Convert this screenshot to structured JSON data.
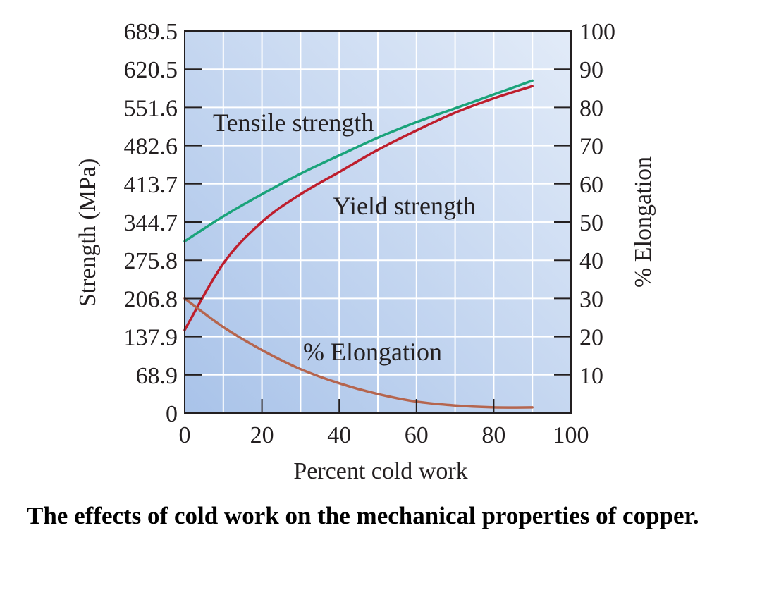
{
  "caption": "The effects of cold work on the mechanical properties of copper.",
  "chart_data": {
    "type": "line",
    "title": "",
    "xlabel": "Percent cold work",
    "ylabel": "Strength (MPa)",
    "y2label": "% Elongation",
    "xlim": [
      0,
      100
    ],
    "ylim": [
      0,
      689.5
    ],
    "y2lim": [
      0,
      100
    ],
    "xticks": [
      0,
      20,
      40,
      60,
      80,
      100
    ],
    "xtick_labels": [
      "0",
      "20",
      "40",
      "60",
      "80",
      "100"
    ],
    "yticks": [
      0,
      68.9,
      137.9,
      206.8,
      275.8,
      344.7,
      413.7,
      482.6,
      551.6,
      620.5,
      689.5
    ],
    "ytick_labels": [
      "0",
      "68.9",
      "137.9",
      "206.8",
      "275.8",
      "344.7",
      "413.7",
      "482.6",
      "551.6",
      "620.5",
      "689.5"
    ],
    "y2ticks": [
      10,
      20,
      30,
      40,
      50,
      60,
      70,
      80,
      90,
      100
    ],
    "y2tick_labels": [
      "10",
      "20",
      "30",
      "40",
      "50",
      "60",
      "70",
      "80",
      "90",
      "100"
    ],
    "grid": true,
    "background_colors": [
      "#a9c3e9",
      "#e2ebf8"
    ],
    "colors": {
      "tensile": "#1aa37a",
      "yield": "#be1e2d",
      "elongation": "#b5654e",
      "grid": "#ffffff",
      "frame": "#231f20"
    },
    "series": [
      {
        "name": "Tensile strength",
        "axis": "left",
        "color": "#1aa37a",
        "x": [
          0,
          10,
          20,
          30,
          40,
          50,
          60,
          70,
          80,
          90
        ],
        "y": [
          310,
          355,
          395,
          432,
          465,
          497,
          525,
          550,
          575,
          600
        ]
      },
      {
        "name": "Yield strength",
        "axis": "left",
        "color": "#be1e2d",
        "x": [
          0,
          10,
          20,
          30,
          40,
          50,
          60,
          70,
          80,
          90
        ],
        "y": [
          150,
          270,
          345,
          395,
          435,
          475,
          510,
          542,
          568,
          590
        ]
      },
      {
        "name": "% Elongation",
        "axis": "right",
        "color": "#b5654e",
        "x": [
          0,
          10,
          20,
          30,
          40,
          50,
          60,
          70,
          80,
          90
        ],
        "y": [
          30,
          22.5,
          16.5,
          11.5,
          7.8,
          5,
          3,
          2,
          1.5,
          1.5
        ]
      }
    ],
    "annotations": [
      {
        "text": "Tensile strength",
        "series": 0
      },
      {
        "text": "Yield strength",
        "series": 1
      },
      {
        "text": "% Elongation",
        "series": 2
      }
    ]
  }
}
